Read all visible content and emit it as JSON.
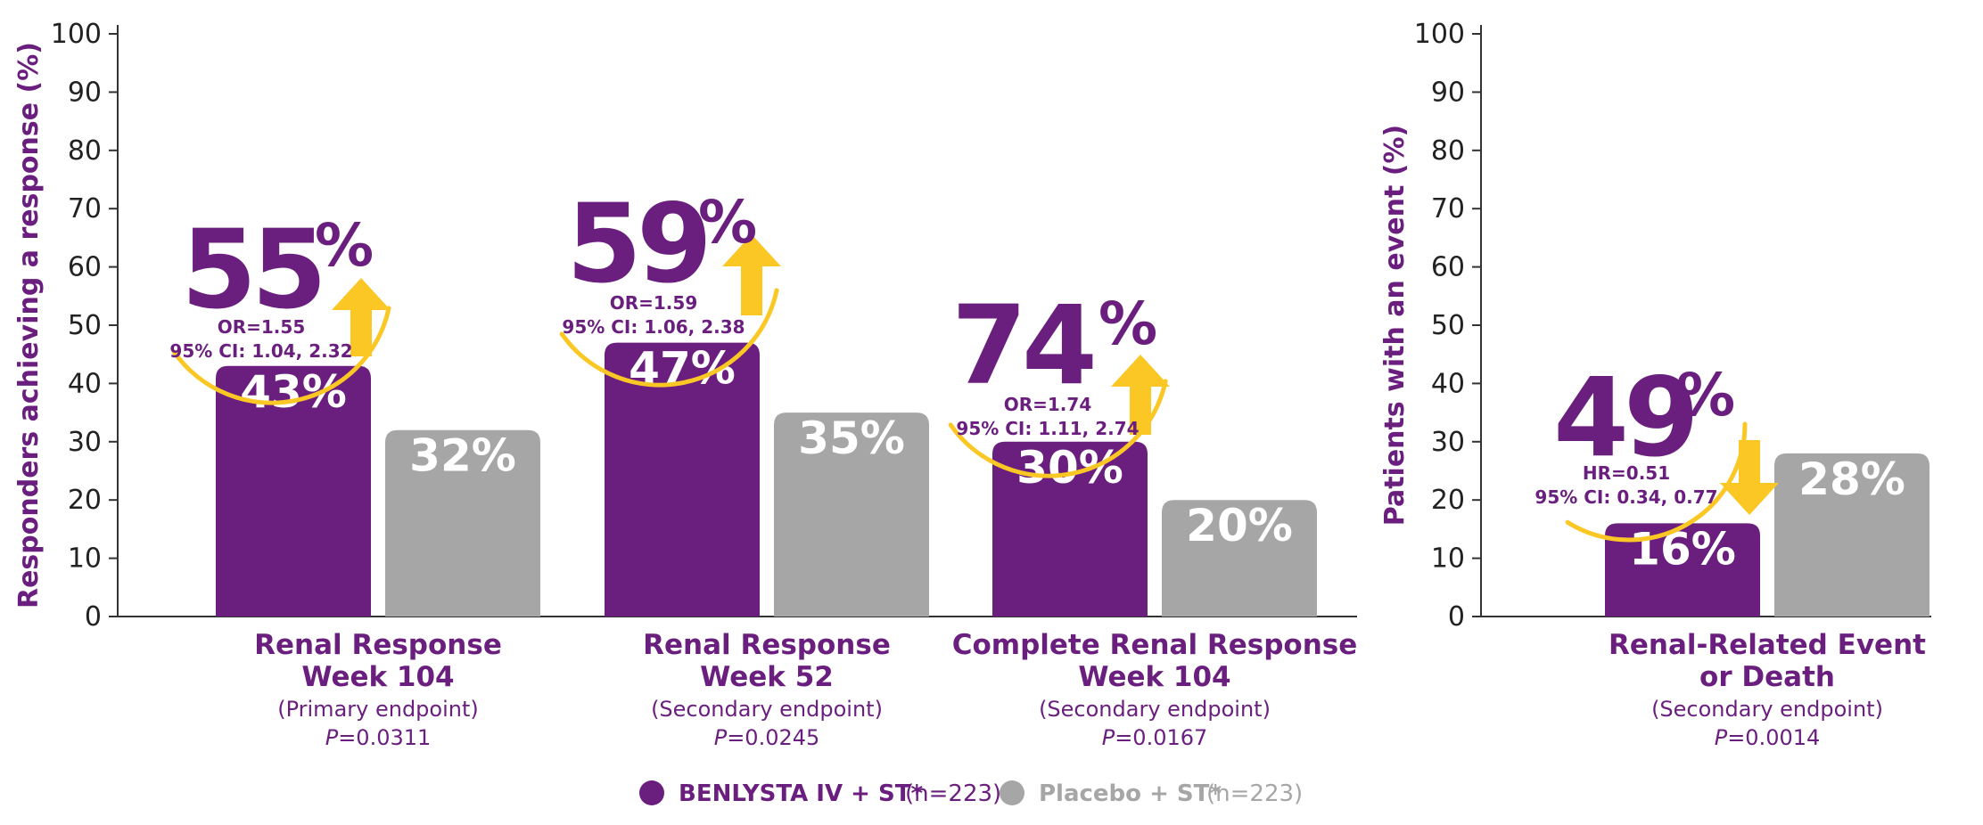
{
  "colors": {
    "benlysta": "#6a1f7f",
    "placebo": "#a6a6a6",
    "highlight": "#fbc725",
    "axis": "#333333"
  },
  "legend": [
    {
      "label": "BENLYSTA IV + ST*",
      "n": "(n=223)",
      "color": "#6a1f7f"
    },
    {
      "label": "Placebo + ST*",
      "n": "(n=223)",
      "color": "#a6a6a6"
    }
  ],
  "chart_data": [
    {
      "type": "bar",
      "ylabel": "Responders achieving a response (%)",
      "ylim": [
        0,
        100
      ],
      "yticks": [
        0,
        10,
        20,
        30,
        40,
        50,
        60,
        70,
        80,
        90,
        100
      ],
      "categories": [
        {
          "title": [
            "Renal Response",
            "Week 104"
          ],
          "endpoint": "(Primary endpoint)",
          "p_prefix": "P",
          "p_value": "=0.0311"
        },
        {
          "title": [
            "Renal Response",
            "Week 52"
          ],
          "endpoint": "(Secondary endpoint)",
          "p_prefix": "P",
          "p_value": "=0.0245"
        },
        {
          "title": [
            "Complete Renal Response",
            "Week 104"
          ],
          "endpoint": "(Secondary endpoint)",
          "p_prefix": "P",
          "p_value": "=0.0167"
        }
      ],
      "series": [
        {
          "name": "BENLYSTA IV + ST*",
          "values": [
            43,
            47,
            30
          ],
          "labels": [
            "43%",
            "47%",
            "30%"
          ]
        },
        {
          "name": "Placebo + ST*",
          "values": [
            32,
            35,
            20
          ],
          "labels": [
            "32%",
            "35%",
            "20%"
          ]
        }
      ],
      "annotations": [
        {
          "big": "55",
          "pct": "%",
          "line1": "OR=1.55",
          "line2": "95% CI: 1.04, 2.32",
          "direction": "up"
        },
        {
          "big": "59",
          "pct": "%",
          "line1": "OR=1.59",
          "line2": "95% CI: 1.06, 2.38",
          "direction": "up"
        },
        {
          "big": "74",
          "pct": "%",
          "line1": "OR=1.74",
          "line2": "95% CI: 1.11, 2.74",
          "direction": "up"
        }
      ]
    },
    {
      "type": "bar",
      "ylabel": "Patients with an event (%)",
      "ylim": [
        0,
        100
      ],
      "yticks": [
        0,
        10,
        20,
        30,
        40,
        50,
        60,
        70,
        80,
        90,
        100
      ],
      "categories": [
        {
          "title": [
            "Renal-Related Event",
            "or Death"
          ],
          "endpoint": "(Secondary endpoint)",
          "p_prefix": "P",
          "p_value": "=0.0014"
        }
      ],
      "series": [
        {
          "name": "BENLYSTA IV + ST*",
          "values": [
            16
          ],
          "labels": [
            "16%"
          ]
        },
        {
          "name": "Placebo + ST*",
          "values": [
            28
          ],
          "labels": [
            "28%"
          ]
        }
      ],
      "annotations": [
        {
          "big": "49",
          "pct": "%",
          "line1": "HR=0.51",
          "line2": "95% CI: 0.34, 0.77",
          "direction": "down"
        }
      ]
    }
  ]
}
